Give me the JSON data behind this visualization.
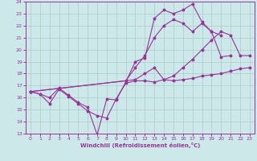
{
  "xlabel": "Windchill (Refroidissement éolien,°C)",
  "bg_color": "#cce8e8",
  "grid_color": "#aacccc",
  "line_color": "#993399",
  "xlim": [
    -0.5,
    23.5
  ],
  "ylim": [
    13,
    24
  ],
  "xticks": [
    0,
    1,
    2,
    3,
    4,
    5,
    6,
    7,
    8,
    9,
    10,
    11,
    12,
    13,
    14,
    15,
    16,
    17,
    18,
    19,
    20,
    21,
    22,
    23
  ],
  "yticks": [
    13,
    14,
    15,
    16,
    17,
    18,
    19,
    20,
    21,
    22,
    23,
    24
  ],
  "series": [
    {
      "x": [
        0,
        1,
        2,
        3,
        4,
        5,
        6,
        7,
        8,
        9,
        10,
        11,
        12,
        13,
        14,
        15,
        16,
        17,
        18,
        19,
        20,
        21,
        22,
        23
      ],
      "y": [
        16.5,
        16.3,
        15.5,
        16.7,
        16.1,
        15.5,
        14.9,
        14.5,
        14.3,
        15.9,
        17.2,
        17.4,
        17.4,
        17.3,
        17.5,
        17.4,
        17.5,
        17.6,
        17.8,
        17.9,
        18.0,
        18.2,
        18.4,
        18.5
      ]
    },
    {
      "x": [
        0,
        1,
        2,
        3,
        4,
        5,
        6,
        7,
        8,
        9,
        10,
        11,
        12,
        13,
        14,
        15,
        16,
        17,
        18,
        19,
        20,
        21
      ],
      "y": [
        16.5,
        16.3,
        16.0,
        16.8,
        16.2,
        15.6,
        15.2,
        12.9,
        15.9,
        15.8,
        17.3,
        19.0,
        19.3,
        22.6,
        23.3,
        23.0,
        23.3,
        23.8,
        22.3,
        21.5,
        19.4,
        19.5
      ]
    },
    {
      "x": [
        0,
        10,
        11,
        12,
        13,
        14,
        15,
        16,
        17,
        18,
        19,
        20
      ],
      "y": [
        16.5,
        17.4,
        18.5,
        19.5,
        21.0,
        22.0,
        22.5,
        22.2,
        21.5,
        22.2,
        21.5,
        21.2
      ]
    },
    {
      "x": [
        0,
        11,
        12,
        13,
        14,
        15,
        16,
        17,
        18,
        19,
        20,
        21,
        22,
        23
      ],
      "y": [
        16.5,
        17.5,
        18.0,
        18.5,
        17.5,
        17.8,
        18.5,
        19.2,
        20.0,
        20.8,
        21.5,
        21.2,
        19.5,
        19.5
      ]
    }
  ]
}
